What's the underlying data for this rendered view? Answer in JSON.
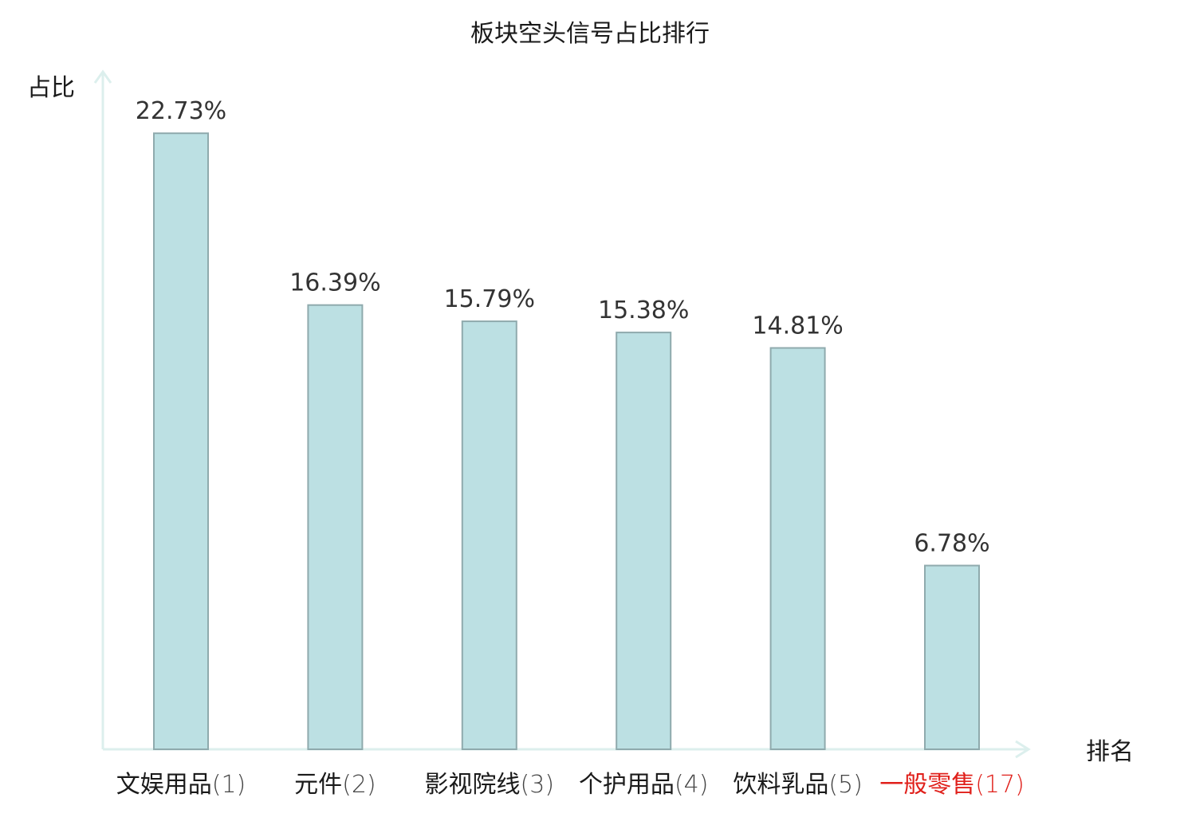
{
  "chart_data": {
    "type": "bar",
    "title": "板块空头信号占比排行",
    "ylabel": "占比",
    "xlabel": "排名",
    "ylim": [
      0,
      25
    ],
    "grid": false,
    "legend": "none",
    "categories": [
      {
        "name": "文娱用品",
        "rank": "(1)",
        "highlight": false
      },
      {
        "name": "元件",
        "rank": "(2)",
        "highlight": false
      },
      {
        "name": "影视院线",
        "rank": "(3)",
        "highlight": false
      },
      {
        "name": "个护用品",
        "rank": "(4)",
        "highlight": false
      },
      {
        "name": "饮料乳品",
        "rank": "(5)",
        "highlight": false
      },
      {
        "name": "一般零售",
        "rank": "(17)",
        "highlight": true
      }
    ],
    "values": [
      22.73,
      16.39,
      15.79,
      15.38,
      14.81,
      6.78
    ],
    "value_labels": [
      "22.73%",
      "16.39%",
      "15.79%",
      "15.38%",
      "14.81%",
      "6.78%"
    ],
    "colors": {
      "bar_fill": "#bce0e3",
      "bar_stroke": "#8faaad",
      "axis": "#dcefed",
      "category_text": "#1a1a1a",
      "rank_text": "#444444",
      "highlight_text": "#e0201b"
    }
  }
}
